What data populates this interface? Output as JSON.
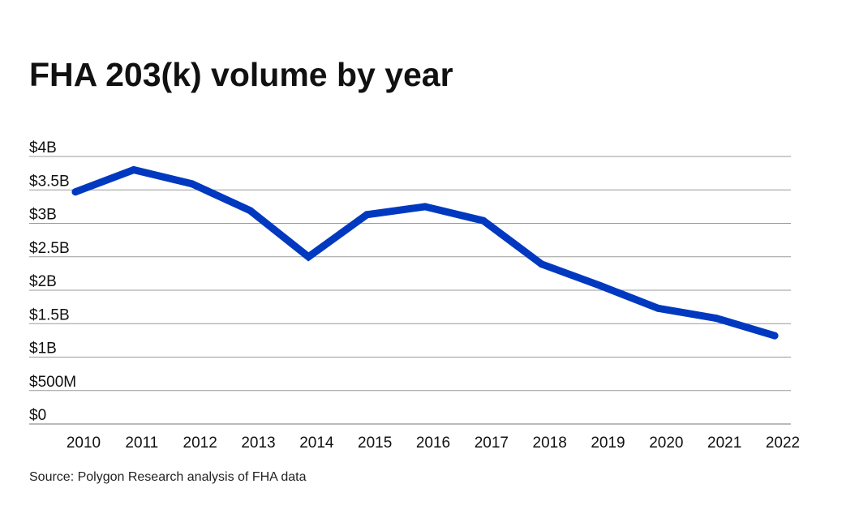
{
  "chart_data": {
    "type": "line",
    "title": "FHA 203(k) volume by year",
    "xlabel": "",
    "ylabel": "",
    "ylim": [
      0,
      4000000000
    ],
    "y_ticks": [
      {
        "value": 0,
        "label": "$0"
      },
      {
        "value": 500000000,
        "label": "$500M"
      },
      {
        "value": 1000000000,
        "label": "$1B"
      },
      {
        "value": 1500000000,
        "label": "$1.5B"
      },
      {
        "value": 2000000000,
        "label": "$2B"
      },
      {
        "value": 2500000000,
        "label": "$2.5B"
      },
      {
        "value": 3000000000,
        "label": "$3B"
      },
      {
        "value": 3500000000,
        "label": "$3.5B"
      },
      {
        "value": 4000000000,
        "label": "$4B"
      }
    ],
    "categories": [
      "2010",
      "2011",
      "2012",
      "2013",
      "2014",
      "2015",
      "2016",
      "2017",
      "2018",
      "2019",
      "2020",
      "2021",
      "2022"
    ],
    "series": [
      {
        "values": [
          3470000000,
          3800000000,
          3590000000,
          3190000000,
          2500000000,
          3130000000,
          3250000000,
          3040000000,
          2390000000,
          2070000000,
          1730000000,
          1580000000,
          1320000000
        ],
        "color": "#0039c0"
      }
    ],
    "grid": true,
    "legend": "none",
    "source": "Source: Polygon Research analysis of FHA data"
  }
}
